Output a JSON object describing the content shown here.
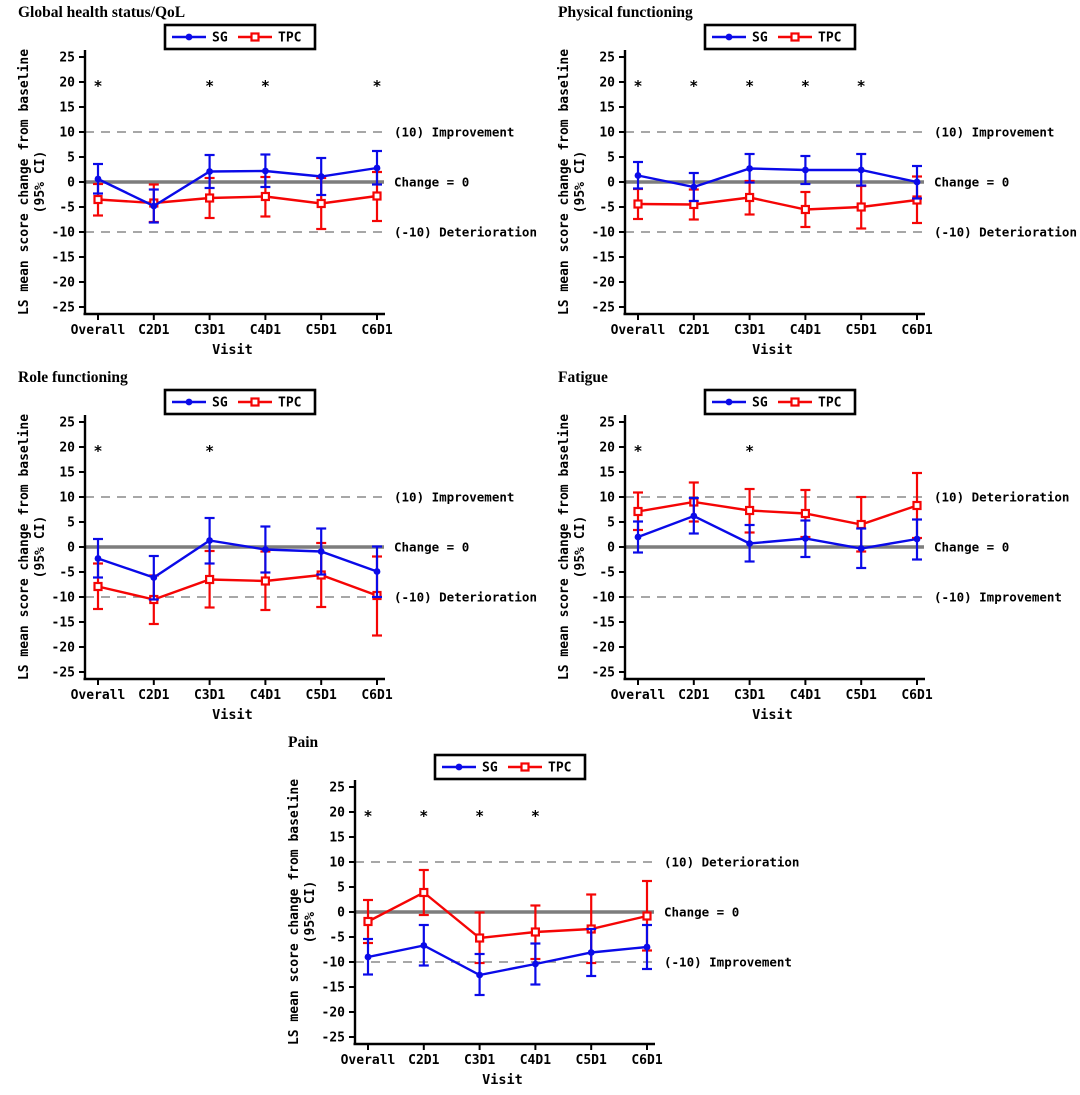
{
  "figure": {
    "background": "#ffffff",
    "colors": {
      "sg": "#0a0ae8",
      "tpc": "#f50505",
      "zero_line": "#7d7d7d",
      "threshold_line": "#8a8a8a",
      "text": "#000000"
    }
  },
  "chart_data": [
    {
      "type": "line",
      "title": "Global health status/QoL",
      "xlabel": "Visit",
      "ylabel_line1": "LS mean score change from baseline",
      "ylabel_line2": "(95% CI)",
      "ylim": [
        -25,
        25
      ],
      "ytick_step": 5,
      "grid": false,
      "legend_position": "top-center",
      "categories": [
        "Overall",
        "C2D1",
        "C3D1",
        "C4D1",
        "C5D1",
        "C6D1"
      ],
      "ref_lines": [
        {
          "y": 10,
          "style": "dashed",
          "label": "(10) Improvement"
        },
        {
          "y": 0,
          "style": "solid",
          "label": "Change = 0"
        },
        {
          "y": -10,
          "style": "dashed",
          "label": "(-10) Deterioration"
        }
      ],
      "significance_marker": "*",
      "significance_y": 20,
      "significant_visits": [
        "Overall",
        "C3D1",
        "C4D1",
        "C6D1"
      ],
      "series": [
        {
          "name": "SG",
          "color": "sg",
          "marker": "circle",
          "mean": [
            0.6,
            -4.8,
            2.1,
            2.2,
            1.1,
            2.8
          ],
          "ci_low": [
            -2.3,
            -8.1,
            -1.2,
            -1.0,
            -2.6,
            -0.5
          ],
          "ci_high": [
            3.6,
            -1.5,
            5.4,
            5.5,
            4.8,
            6.2
          ]
        },
        {
          "name": "TPC",
          "color": "tpc",
          "marker": "square",
          "mean": [
            -3.5,
            -4.2,
            -3.2,
            -2.9,
            -4.3,
            -2.8
          ],
          "ci_low": [
            -6.7,
            -8.0,
            -7.2,
            -6.9,
            -9.4,
            -7.8
          ],
          "ci_high": [
            -0.4,
            -0.5,
            0.8,
            1.0,
            0.8,
            2.0
          ]
        }
      ]
    },
    {
      "type": "line",
      "title": "Physical functioning",
      "xlabel": "Visit",
      "ylabel_line1": "LS mean score change from baseline",
      "ylabel_line2": "(95% CI)",
      "ylim": [
        -25,
        25
      ],
      "ytick_step": 5,
      "grid": false,
      "legend_position": "top-center",
      "categories": [
        "Overall",
        "C2D1",
        "C3D1",
        "C4D1",
        "C5D1",
        "C6D1"
      ],
      "ref_lines": [
        {
          "y": 10,
          "style": "dashed",
          "label": "(10) Improvement"
        },
        {
          "y": 0,
          "style": "solid",
          "label": "Change = 0"
        },
        {
          "y": -10,
          "style": "dashed",
          "label": "(-10) Deterioration"
        }
      ],
      "significance_marker": "*",
      "significance_y": 20,
      "significant_visits": [
        "Overall",
        "C2D1",
        "C3D1",
        "C4D1",
        "C5D1"
      ],
      "series": [
        {
          "name": "SG",
          "color": "sg",
          "marker": "circle",
          "mean": [
            1.3,
            -1.0,
            2.7,
            2.4,
            2.4,
            0.0
          ],
          "ci_low": [
            -1.3,
            -3.8,
            -0.1,
            -0.4,
            -0.7,
            -3.3
          ],
          "ci_high": [
            4.0,
            1.8,
            5.6,
            5.2,
            5.6,
            3.2
          ]
        },
        {
          "name": "TPC",
          "color": "tpc",
          "marker": "square",
          "mean": [
            -4.4,
            -4.5,
            -3.1,
            -5.5,
            -5.0,
            -3.6
          ],
          "ci_low": [
            -7.4,
            -7.5,
            -6.5,
            -9.0,
            -9.3,
            -8.2
          ],
          "ci_high": [
            -1.4,
            -1.5,
            0.2,
            -2.0,
            -0.8,
            1.1
          ]
        }
      ]
    },
    {
      "type": "line",
      "title": "Role functioning",
      "xlabel": "Visit",
      "ylabel_line1": "LS mean score change from baseline",
      "ylabel_line2": "(95% CI)",
      "ylim": [
        -25,
        25
      ],
      "ytick_step": 5,
      "grid": false,
      "legend_position": "top-center",
      "categories": [
        "Overall",
        "C2D1",
        "C3D1",
        "C4D1",
        "C5D1",
        "C6D1"
      ],
      "ref_lines": [
        {
          "y": 10,
          "style": "dashed",
          "label": "(10) Improvement"
        },
        {
          "y": 0,
          "style": "solid",
          "label": "Change = 0"
        },
        {
          "y": -10,
          "style": "dashed",
          "label": "(-10) Deterioration"
        }
      ],
      "significance_marker": "*",
      "significance_y": 20,
      "significant_visits": [
        "Overall",
        "C3D1"
      ],
      "series": [
        {
          "name": "SG",
          "color": "sg",
          "marker": "circle",
          "mean": [
            -2.3,
            -6.1,
            1.3,
            -0.5,
            -0.9,
            -4.9
          ],
          "ci_low": [
            -6.1,
            -10.5,
            -3.3,
            -5.1,
            -5.5,
            -10.0
          ],
          "ci_high": [
            1.6,
            -1.8,
            5.8,
            4.1,
            3.7,
            0.1
          ]
        },
        {
          "name": "TPC",
          "color": "tpc",
          "marker": "square",
          "mean": [
            -7.9,
            -10.5,
            -6.5,
            -6.8,
            -5.6,
            -9.7
          ],
          "ci_low": [
            -12.4,
            -15.4,
            -12.1,
            -12.6,
            -12.0,
            -17.7
          ],
          "ci_high": [
            -3.3,
            -5.7,
            -0.8,
            -0.9,
            0.8,
            -1.9
          ]
        }
      ]
    },
    {
      "type": "line",
      "title": "Fatigue",
      "xlabel": "Visit",
      "ylabel_line1": "LS mean score change from baseline",
      "ylabel_line2": "(95% CI)",
      "ylim": [
        -25,
        25
      ],
      "ytick_step": 5,
      "grid": false,
      "legend_position": "top-center",
      "categories": [
        "Overall",
        "C2D1",
        "C3D1",
        "C4D1",
        "C5D1",
        "C6D1"
      ],
      "ref_lines": [
        {
          "y": 10,
          "style": "dashed",
          "label": "(10) Deterioration"
        },
        {
          "y": 0,
          "style": "solid",
          "label": "Change = 0"
        },
        {
          "y": -10,
          "style": "dashed",
          "label": "(-10) Improvement"
        }
      ],
      "significance_marker": "*",
      "significance_y": 20,
      "significant_visits": [
        "Overall",
        "C3D1"
      ],
      "series": [
        {
          "name": "SG",
          "color": "sg",
          "marker": "circle",
          "mean": [
            2.0,
            6.2,
            0.7,
            1.7,
            -0.3,
            1.6
          ],
          "ci_low": [
            -1.1,
            2.7,
            -2.9,
            -2.0,
            -4.2,
            -2.5
          ],
          "ci_high": [
            5.1,
            9.8,
            4.4,
            5.3,
            3.7,
            5.5
          ]
        },
        {
          "name": "TPC",
          "color": "tpc",
          "marker": "square",
          "mean": [
            7.1,
            9.0,
            7.3,
            6.7,
            4.5,
            8.3
          ],
          "ci_low": [
            3.4,
            5.1,
            2.9,
            2.0,
            -0.9,
            1.8
          ],
          "ci_high": [
            10.9,
            12.9,
            11.6,
            11.4,
            10.0,
            14.8
          ]
        }
      ]
    },
    {
      "type": "line",
      "title": "Pain",
      "xlabel": "Visit",
      "ylabel_line1": "LS mean score change from baseline",
      "ylabel_line2": "(95% CI)",
      "ylim": [
        -25,
        25
      ],
      "ytick_step": 5,
      "grid": false,
      "legend_position": "top-center",
      "categories": [
        "Overall",
        "C2D1",
        "C3D1",
        "C4D1",
        "C5D1",
        "C6D1"
      ],
      "ref_lines": [
        {
          "y": 10,
          "style": "dashed",
          "label": "(10) Deterioration"
        },
        {
          "y": 0,
          "style": "solid",
          "label": "Change = 0"
        },
        {
          "y": -10,
          "style": "dashed",
          "label": "(-10) Improvement"
        }
      ],
      "significance_marker": "*",
      "significance_y": 20,
      "significant_visits": [
        "Overall",
        "C2D1",
        "C3D1",
        "C4D1"
      ],
      "series": [
        {
          "name": "SG",
          "color": "sg",
          "marker": "circle",
          "mean": [
            -9.0,
            -6.7,
            -12.6,
            -10.4,
            -8.1,
            -7.0
          ],
          "ci_low": [
            -12.5,
            -10.7,
            -16.6,
            -14.5,
            -12.8,
            -11.4
          ],
          "ci_high": [
            -5.4,
            -2.6,
            -8.4,
            -6.3,
            -3.4,
            -2.6
          ]
        },
        {
          "name": "TPC",
          "color": "tpc",
          "marker": "square",
          "mean": [
            -1.9,
            3.9,
            -5.2,
            -4.0,
            -3.4,
            -0.8
          ],
          "ci_low": [
            -6.2,
            -0.6,
            -10.2,
            -9.4,
            -10.2,
            -7.7
          ],
          "ci_high": [
            2.4,
            8.4,
            -0.1,
            1.3,
            3.5,
            6.2
          ]
        }
      ]
    }
  ]
}
